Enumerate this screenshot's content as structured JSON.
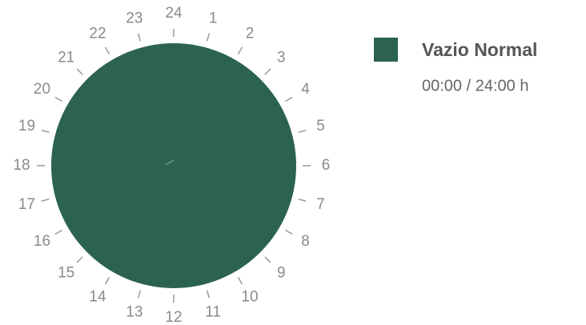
{
  "chart_data": {
    "type": "pie",
    "categories": [
      "Vazio Normal"
    ],
    "values": [
      24
    ],
    "value_labels": [
      "00:00 / 24:00 h"
    ],
    "colors": [
      "#2b6350"
    ],
    "ticks": [
      1,
      2,
      3,
      4,
      5,
      6,
      7,
      8,
      9,
      10,
      11,
      12,
      13,
      14,
      15,
      16,
      17,
      18,
      19,
      20,
      21,
      22,
      23,
      24
    ],
    "legend": "right"
  }
}
